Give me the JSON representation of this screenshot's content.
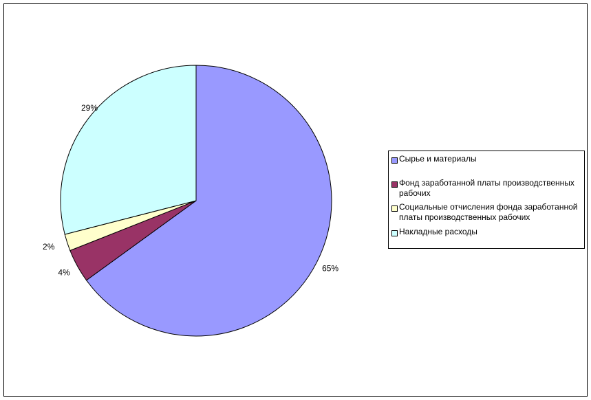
{
  "chart_data": {
    "type": "pie",
    "categories": [
      "Сырье и материалы",
      "Фонд заработанной платы производственных рабочих",
      "Социальные отчисления фонда заработанной платы производственных рабочих",
      "Накладные расходы"
    ],
    "values": [
      65,
      4,
      2,
      29
    ],
    "data_labels": [
      "65%",
      "4%",
      "2%",
      "29%"
    ],
    "colors": [
      "#9999FF",
      "#993366",
      "#FFFFCC",
      "#CCFFFF"
    ],
    "legend_position": "right"
  }
}
